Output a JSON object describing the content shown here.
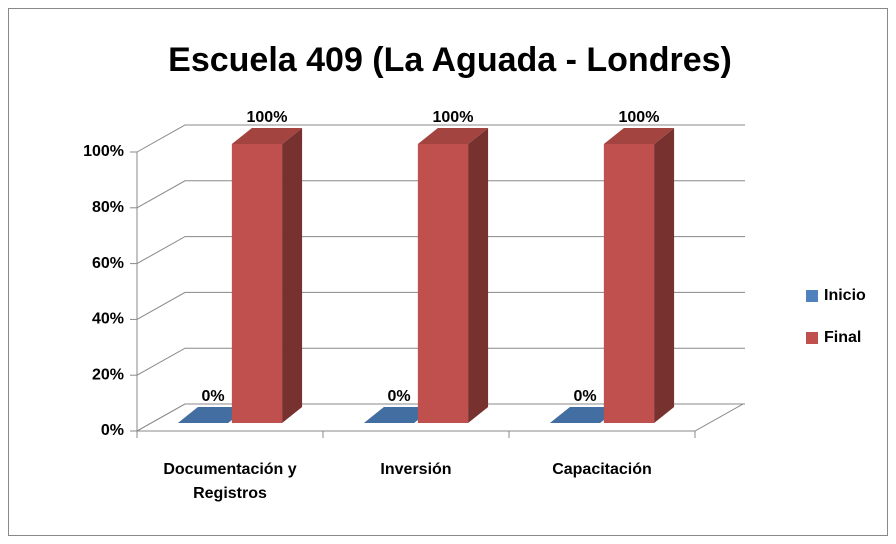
{
  "chart_data": {
    "type": "bar3d",
    "title": "Escuela 409 (La Aguada - Londres)",
    "categories": [
      "Documentación y Registros",
      "Inversión",
      "Capacitación"
    ],
    "series": [
      {
        "name": "Inicio",
        "color": "#4f81bd",
        "values": [
          0,
          0,
          0
        ],
        "value_labels": [
          "0%",
          "0%",
          "0%"
        ]
      },
      {
        "name": "Final",
        "color": "#c0504d",
        "values": [
          100,
          100,
          100
        ],
        "value_labels": [
          "100%",
          "100%",
          "100%"
        ]
      }
    ],
    "ylim": [
      0,
      100
    ],
    "yticks": [
      {
        "value": 0,
        "label": "0%"
      },
      {
        "value": 20,
        "label": "20%"
      },
      {
        "value": 40,
        "label": "40%"
      },
      {
        "value": 60,
        "label": "60%"
      },
      {
        "value": 80,
        "label": "80%"
      },
      {
        "value": 100,
        "label": "100%"
      }
    ],
    "grid": true,
    "legend": "right"
  }
}
